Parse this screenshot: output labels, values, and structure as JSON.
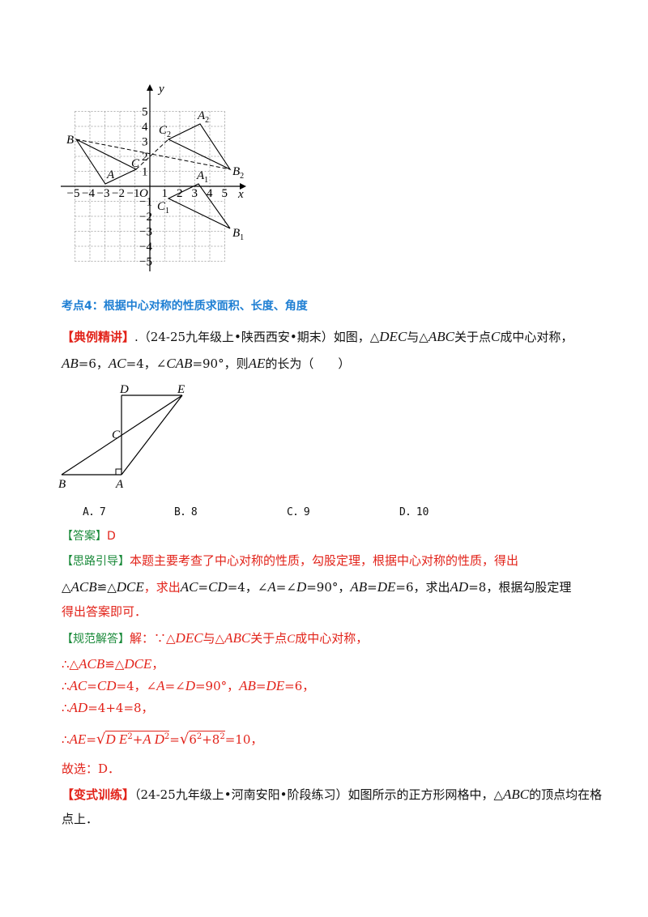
{
  "graph1": {
    "axis_x": "x",
    "axis_y": "y",
    "origin": "O",
    "x_ticks": [
      "−5",
      "−4",
      "−3",
      "−2",
      "−1",
      "1",
      "2",
      "3",
      "4",
      "5"
    ],
    "y_ticks": [
      "5",
      "4",
      "3",
      "2",
      "1",
      "−1",
      "−2",
      "−3",
      "−4",
      "−5"
    ],
    "labels": {
      "B": "B",
      "A": "A",
      "C": "C",
      "C2": "C",
      "C2_sub": "2",
      "A2": "A",
      "A2_sub": "2",
      "B2": "B",
      "B2_sub": "2",
      "A1": "A",
      "A1_sub": "1",
      "C1": "C",
      "C1_sub": "1",
      "B1": "B",
      "B1_sub": "1"
    }
  },
  "section_title": "考点4：根据中心对称的性质求面积、长度、角度",
  "example": {
    "tag": "【典例精讲】",
    "line1_a": ".（24-25九年级上•陕西西安•期末）如图，",
    "tri1": "△",
    "DEC": "DEC",
    "yu": "与",
    "tri2": "△",
    "ABC": "ABC",
    "line1_b": "关于点",
    "C": "C",
    "line1_c": "成中心对称，",
    "line2_a": "AB",
    "line2_b": "=6，",
    "line2_c": "AC",
    "line2_d": "=4，∠",
    "line2_e": "CAB",
    "line2_f": "=90°，则",
    "line2_g": "AE",
    "line2_h": "的长为（　　）"
  },
  "figure2": {
    "D": "D",
    "E": "E",
    "C": "C",
    "B": "B",
    "A": "A"
  },
  "options": [
    "A．7",
    "B．8",
    "C．9",
    "D．10"
  ],
  "answer": {
    "tag": "【答案】",
    "value": "D"
  },
  "hint": {
    "tag": "【思路引导】",
    "line1": "本题主要考查了中心对称的性质，勾股定理，根据中心对称的性质，得出",
    "line2_a": "△",
    "line2_b": "ACB",
    "line2_c": "≌△",
    "line2_d": "DCE",
    "line2_e": "，求出",
    "line2_f": "AC",
    "line2_g": "=",
    "line2_h": "CD",
    "line2_i": "=4，∠",
    "line2_j": "A",
    "line2_k": "=∠",
    "line2_l": "D",
    "line2_m": "=90°，",
    "line2_n": "AB",
    "line2_o": "=",
    "line2_p": "DE",
    "line2_q": "=6，求出",
    "line2_r": "AD",
    "line2_s": "=8，根据勾股定理",
    "line3": "得出答案即可．"
  },
  "solution": {
    "tag": "【规范解答】",
    "l1_a": "解：∵△",
    "l1_b": "DEC",
    "l1_c": "与△",
    "l1_d": "ABC",
    "l1_e": "关于点",
    "l1_f": "C",
    "l1_g": "成中心对称，",
    "l2_a": "∴△",
    "l2_b": "ACB",
    "l2_c": "≌△",
    "l2_d": "DCE",
    "l2_e": "，",
    "l3_a": "∴",
    "l3_b": "AC",
    "l3_c": "=",
    "l3_d": "CD",
    "l3_e": "=4，∠",
    "l3_f": "A",
    "l3_g": "=∠",
    "l3_h": "D",
    "l3_i": "=90°，",
    "l3_j": "AB",
    "l3_k": "=",
    "l3_l": "DE",
    "l3_m": "=6，",
    "l4_a": "∴",
    "l4_b": "AD",
    "l4_c": "=4+4=8，",
    "l5_a": "∴",
    "l5_b": "AE",
    "l5_c": "=",
    "l5_d": "D E",
    "l5_e": "2",
    "l5_f": "+",
    "l5_g": "A D",
    "l5_h": "2",
    "l5_i": "=",
    "l5_j": "6",
    "l5_k": "2",
    "l5_l": "+8",
    "l5_m": "2",
    "l5_n": "=10，",
    "l6": "故选：D．"
  },
  "variant": {
    "tag": "【变式训练】",
    "line1_a": "（24-25九年级上•河南安阳•阶段练习）如图所示的正方形网格中，△",
    "line1_b": "ABC",
    "line1_c": "的顶点均在格",
    "line2": "点上．"
  }
}
